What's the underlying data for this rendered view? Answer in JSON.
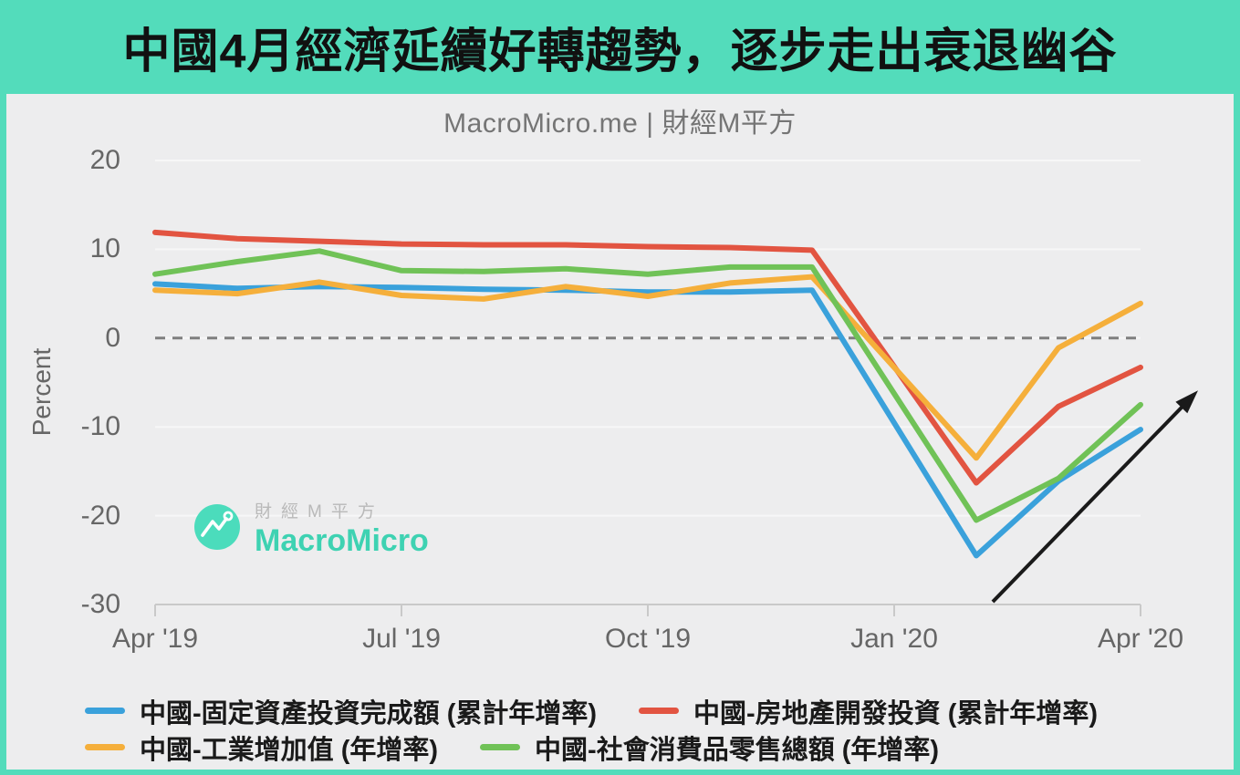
{
  "header": {
    "title": "中國4月經濟延續好轉趨勢，逐步走出衰退幽谷"
  },
  "chart": {
    "subtitle": "MacroMicro.me | 財經M平方"
  },
  "watermark": {
    "cjk_text": "財經M平方",
    "brand": "MacroMicro"
  },
  "colors": {
    "header_teal": "#53DCBB",
    "panel_bg": "#EDEDEE",
    "grid_line": "#F7F7F7",
    "axis_line": "#C9C9C9",
    "zero_line": "#7F7F7F",
    "title_text": "#111111",
    "axis_text": "#666666",
    "subtitle_text": "#757575",
    "legend_text": "#1A1A1A",
    "watermark_gray": "#B9B9B9",
    "brand_teal": "#3ED2B2",
    "logo_circle": "#4BDCBC",
    "arrow": "#1A1A1A"
  },
  "chart_data": {
    "type": "line",
    "title": "MacroMicro.me | 財經M平方",
    "ylabel": "Percent",
    "ylim": [
      -30,
      20
    ],
    "y_ticks": [
      20,
      10,
      0,
      -10,
      -20,
      -30
    ],
    "zero_line_dashed": true,
    "grid": true,
    "x": [
      "Apr 2019",
      "May 2019",
      "Jun 2019",
      "Jul 2019",
      "Aug 2019",
      "Sep 2019",
      "Oct 2019",
      "Nov 2019",
      "Dec 2019",
      "Feb 2020",
      "Mar 2020",
      "Apr 2020"
    ],
    "month_offsets": [
      0,
      1,
      2,
      3,
      4,
      5,
      6,
      7,
      8,
      10,
      11,
      12
    ],
    "month_span": 12,
    "x_tick_labels": [
      "Apr '19",
      "Jul '19",
      "Oct '19",
      "Jan '20",
      "Apr '20"
    ],
    "x_tick_offsets": [
      0,
      3,
      6,
      9,
      12
    ],
    "series": [
      {
        "name": "中國-固定資產投資完成額 (累計年增率)",
        "color": "#3AA1DB",
        "values": [
          6.1,
          5.6,
          5.8,
          5.7,
          5.5,
          5.4,
          5.2,
          5.2,
          5.4,
          -24.5,
          -16.1,
          -10.3
        ]
      },
      {
        "name": "中國-房地產開發投資 (累計年增率)",
        "color": "#E25441",
        "values": [
          11.9,
          11.2,
          10.9,
          10.6,
          10.5,
          10.5,
          10.3,
          10.2,
          9.9,
          -16.3,
          -7.7,
          -3.3
        ]
      },
      {
        "name": "中國-工業增加值 (年增率)",
        "color": "#F5AF3B",
        "values": [
          5.4,
          5.0,
          6.3,
          4.8,
          4.4,
          5.8,
          4.7,
          6.2,
          6.9,
          -13.5,
          -1.1,
          3.9
        ]
      },
      {
        "name": "中國-社會消費品零售總額 (年增率)",
        "color": "#70C257",
        "values": [
          7.2,
          8.6,
          9.8,
          7.6,
          7.5,
          7.8,
          7.2,
          8.0,
          8.0,
          -20.5,
          -15.8,
          -7.5
        ]
      }
    ],
    "legend_position": "bottom",
    "annotation_arrow": {
      "from": {
        "month": 10.2,
        "value": -29.7
      },
      "to": {
        "month": 12.7,
        "value": -5.9
      }
    }
  }
}
